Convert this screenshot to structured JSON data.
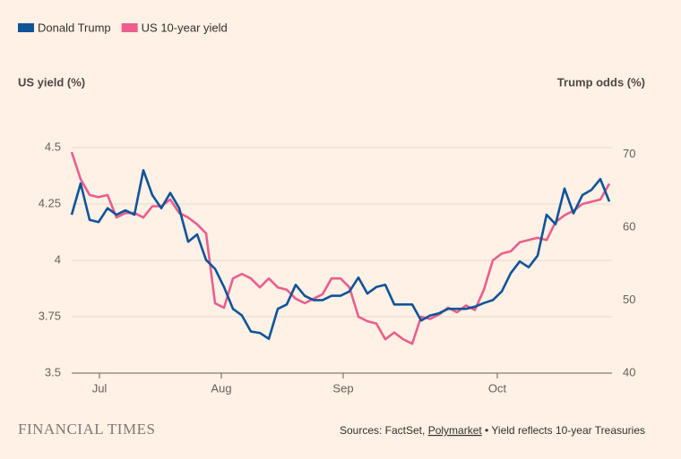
{
  "chart_data": {
    "type": "line",
    "series": [
      {
        "name": "Donald Trump",
        "color": "#0f5499",
        "axis": "y2",
        "values": [
          61.7,
          66.0,
          61.0,
          60.7,
          62.6,
          61.7,
          62.3,
          61.7,
          67.8,
          64.4,
          62.6,
          64.7,
          62.6,
          58.0,
          59.0,
          55.5,
          54.3,
          51.8,
          48.8,
          47.9,
          45.7,
          45.5,
          44.7,
          48.8,
          49.4,
          52.1,
          50.6,
          50.0,
          50.0,
          50.6,
          50.6,
          51.2,
          53.1,
          50.9,
          51.8,
          52.1,
          49.4,
          49.4,
          49.4,
          47.2,
          47.9,
          48.2,
          48.8,
          48.8,
          48.8,
          49.1,
          49.6,
          50.0,
          51.2,
          53.7,
          55.3,
          54.5,
          56.1,
          61.7,
          60.4,
          65.3,
          61.9,
          64.4,
          65.1,
          66.6,
          63.5
        ]
      },
      {
        "name": "US 10-year yield",
        "color": "#eb5e8d",
        "values": [
          4.48,
          4.36,
          4.29,
          4.28,
          4.29,
          4.19,
          4.21,
          4.21,
          4.19,
          4.24,
          4.24,
          4.27,
          4.21,
          4.19,
          4.16,
          4.12,
          3.81,
          3.79,
          3.92,
          3.94,
          3.92,
          3.88,
          3.92,
          3.88,
          3.87,
          3.83,
          3.81,
          3.83,
          3.85,
          3.92,
          3.92,
          3.88,
          3.75,
          3.73,
          3.72,
          3.65,
          3.68,
          3.65,
          3.63,
          3.75,
          3.74,
          3.76,
          3.79,
          3.77,
          3.8,
          3.78,
          3.87,
          4.0,
          4.03,
          4.04,
          4.08,
          4.09,
          4.1,
          4.09,
          4.17,
          4.2,
          4.22,
          4.25,
          4.26,
          4.27,
          4.34
        ]
      }
    ],
    "x": [
      0,
      1,
      2,
      3,
      4,
      5,
      6,
      7,
      8,
      9,
      10,
      11,
      12,
      13,
      14,
      15,
      16,
      17,
      18,
      19,
      20,
      21,
      22,
      23,
      24,
      25,
      26,
      27,
      28,
      29,
      30,
      31,
      32,
      33,
      34,
      35,
      36,
      37,
      38,
      39,
      40,
      41,
      42,
      43,
      44,
      45,
      46,
      47,
      48,
      49,
      50,
      51,
      52,
      53,
      54,
      55,
      56,
      57,
      58,
      59,
      60
    ],
    "xlim": [
      0,
      60.3
    ],
    "xticks": [
      {
        "value": 3.1,
        "label": "Jul"
      },
      {
        "value": 16.7,
        "label": "Aug"
      },
      {
        "value": 30.3,
        "label": "Sep"
      },
      {
        "value": 47.5,
        "label": "Oct"
      }
    ],
    "ylabel": "US yield (%)",
    "ylim": [
      3.5,
      4.5
    ],
    "yticks": [
      3.5,
      3.75,
      {
        "value": 4,
        "label": "4"
      },
      4.25,
      4.5
    ],
    "y2label": "Trump odds (%)",
    "y2lim": [
      40,
      70.9
    ],
    "y2ticks": [
      40,
      50,
      60,
      70
    ],
    "grid": true,
    "footer": {
      "brand": "FINANCIAL TIMES",
      "source_prefix": "Sources: FactSet, ",
      "source_link": "Polymarket",
      "source_suffix": " • Yield reflects 10-year Treasuries"
    }
  }
}
